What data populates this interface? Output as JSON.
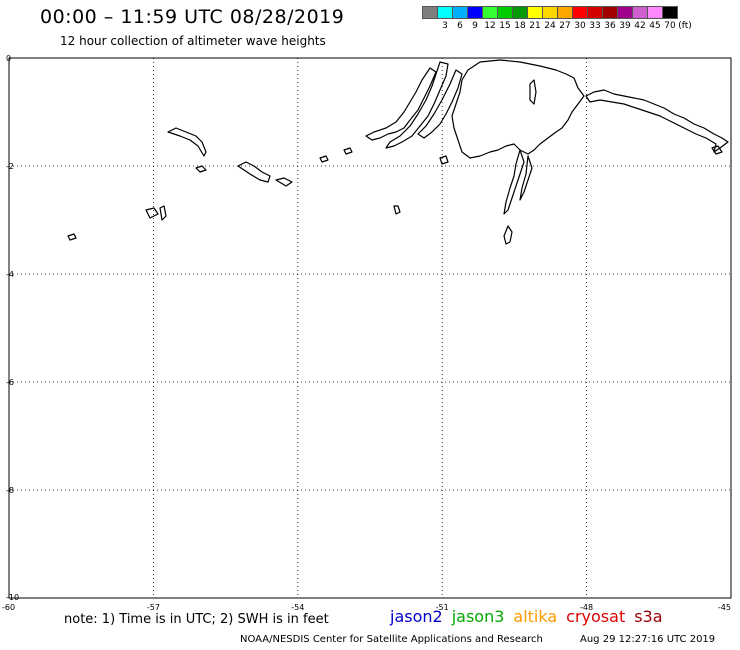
{
  "header": {
    "title": "00:00 – 11:59 UTC 08/28/2019",
    "subtitle": "12 hour collection of altimeter wave heights"
  },
  "legend": {
    "unit_label": "(ft)",
    "bins": [
      {
        "label": "",
        "color": "#7f7f7f"
      },
      {
        "label": "3",
        "color": "#00ffff"
      },
      {
        "label": "6",
        "color": "#00b0ff"
      },
      {
        "label": "9",
        "color": "#0000ff"
      },
      {
        "label": "12",
        "color": "#33ff33"
      },
      {
        "label": "15",
        "color": "#00cc00"
      },
      {
        "label": "18",
        "color": "#009900"
      },
      {
        "label": "21",
        "color": "#ffff00"
      },
      {
        "label": "24",
        "color": "#ffd700"
      },
      {
        "label": "27",
        "color": "#ffa500"
      },
      {
        "label": "30",
        "color": "#ff0000"
      },
      {
        "label": "33",
        "color": "#d40000"
      },
      {
        "label": "36",
        "color": "#a00000"
      },
      {
        "label": "39",
        "color": "#a0008c"
      },
      {
        "label": "42",
        "color": "#d060d0"
      },
      {
        "label": "45",
        "color": "#ff88ff"
      },
      {
        "label": "70",
        "color": "#000000"
      }
    ]
  },
  "map": {
    "lon_range": [
      -60,
      -45
    ],
    "lat_range": [
      -10,
      0
    ],
    "lon_ticks": [
      "-60",
      "-57",
      "-54",
      "-51",
      "-48",
      "-45"
    ],
    "lat_ticks": [
      "0",
      "-2",
      "-4",
      "-6",
      "-8",
      "-10"
    ],
    "grid": "dotted"
  },
  "footer": {
    "note": "note: 1) Time is in UTC; 2) SWH is in feet",
    "satellites": [
      {
        "name": "jason2",
        "color": "#0000cc"
      },
      {
        "name": "jason3",
        "color": "#00aa00"
      },
      {
        "name": "altika",
        "color": "#ff9900"
      },
      {
        "name": "cryosat",
        "color": "#dd0000"
      },
      {
        "name": "s3a",
        "color": "#990000"
      }
    ],
    "credit": "NOAA/NESDIS Center for Satellite Applications and Research",
    "timestamp": "Aug 29 12:27:16 UTC 2019"
  }
}
